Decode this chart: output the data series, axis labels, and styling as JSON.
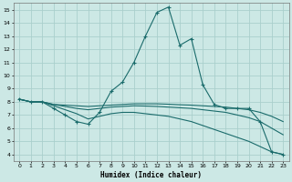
{
  "xlabel": "Humidex (Indice chaleur)",
  "xlim": [
    -0.5,
    23.5
  ],
  "ylim": [
    3.5,
    15.5
  ],
  "yticks": [
    4,
    5,
    6,
    7,
    8,
    9,
    10,
    11,
    12,
    13,
    14,
    15
  ],
  "xticks": [
    0,
    1,
    2,
    3,
    4,
    5,
    6,
    7,
    8,
    9,
    10,
    11,
    12,
    13,
    14,
    15,
    16,
    17,
    18,
    19,
    20,
    21,
    22,
    23
  ],
  "background_color": "#cce8e5",
  "grid_color": "#aacfcc",
  "line_color": "#1a6b6b",
  "series": [
    {
      "x": [
        0,
        1,
        2,
        3,
        4,
        5,
        6,
        7,
        8,
        9,
        10,
        11,
        12,
        13,
        14,
        15,
        16,
        17,
        18,
        19,
        20,
        21,
        22,
        23
      ],
      "y": [
        8.2,
        8.0,
        8.0,
        7.5,
        7.0,
        6.5,
        6.3,
        7.2,
        8.8,
        9.5,
        11.0,
        13.0,
        14.8,
        15.2,
        12.3,
        12.8,
        9.3,
        7.8,
        7.5,
        7.5,
        7.5,
        6.5,
        4.2,
        4.0
      ],
      "marker": "+"
    },
    {
      "x": [
        0,
        1,
        2,
        3,
        4,
        5,
        6,
        7,
        8,
        9,
        10,
        11,
        12,
        13,
        14,
        15,
        16,
        17,
        18,
        19,
        20,
        21,
        22,
        23
      ],
      "y": [
        8.2,
        8.0,
        8.0,
        7.8,
        7.75,
        7.7,
        7.65,
        7.7,
        7.75,
        7.8,
        7.85,
        7.85,
        7.85,
        7.82,
        7.78,
        7.75,
        7.7,
        7.65,
        7.6,
        7.5,
        7.4,
        7.2,
        6.9,
        6.5
      ],
      "marker": null
    },
    {
      "x": [
        0,
        1,
        2,
        3,
        4,
        5,
        6,
        7,
        8,
        9,
        10,
        11,
        12,
        13,
        14,
        15,
        16,
        17,
        18,
        19,
        20,
        21,
        22,
        23
      ],
      "y": [
        8.2,
        8.0,
        8.0,
        7.8,
        7.65,
        7.5,
        7.4,
        7.5,
        7.6,
        7.65,
        7.7,
        7.68,
        7.65,
        7.6,
        7.55,
        7.5,
        7.4,
        7.3,
        7.2,
        7.0,
        6.8,
        6.5,
        6.0,
        5.5
      ],
      "marker": null
    },
    {
      "x": [
        0,
        1,
        2,
        3,
        4,
        5,
        6,
        7,
        8,
        9,
        10,
        11,
        12,
        13,
        14,
        15,
        16,
        17,
        18,
        19,
        20,
        21,
        22,
        23
      ],
      "y": [
        8.2,
        8.0,
        8.0,
        7.7,
        7.4,
        7.1,
        6.7,
        6.9,
        7.1,
        7.2,
        7.2,
        7.1,
        7.0,
        6.9,
        6.7,
        6.5,
        6.2,
        5.9,
        5.6,
        5.3,
        5.0,
        4.6,
        4.2,
        4.0
      ],
      "marker": null
    }
  ]
}
